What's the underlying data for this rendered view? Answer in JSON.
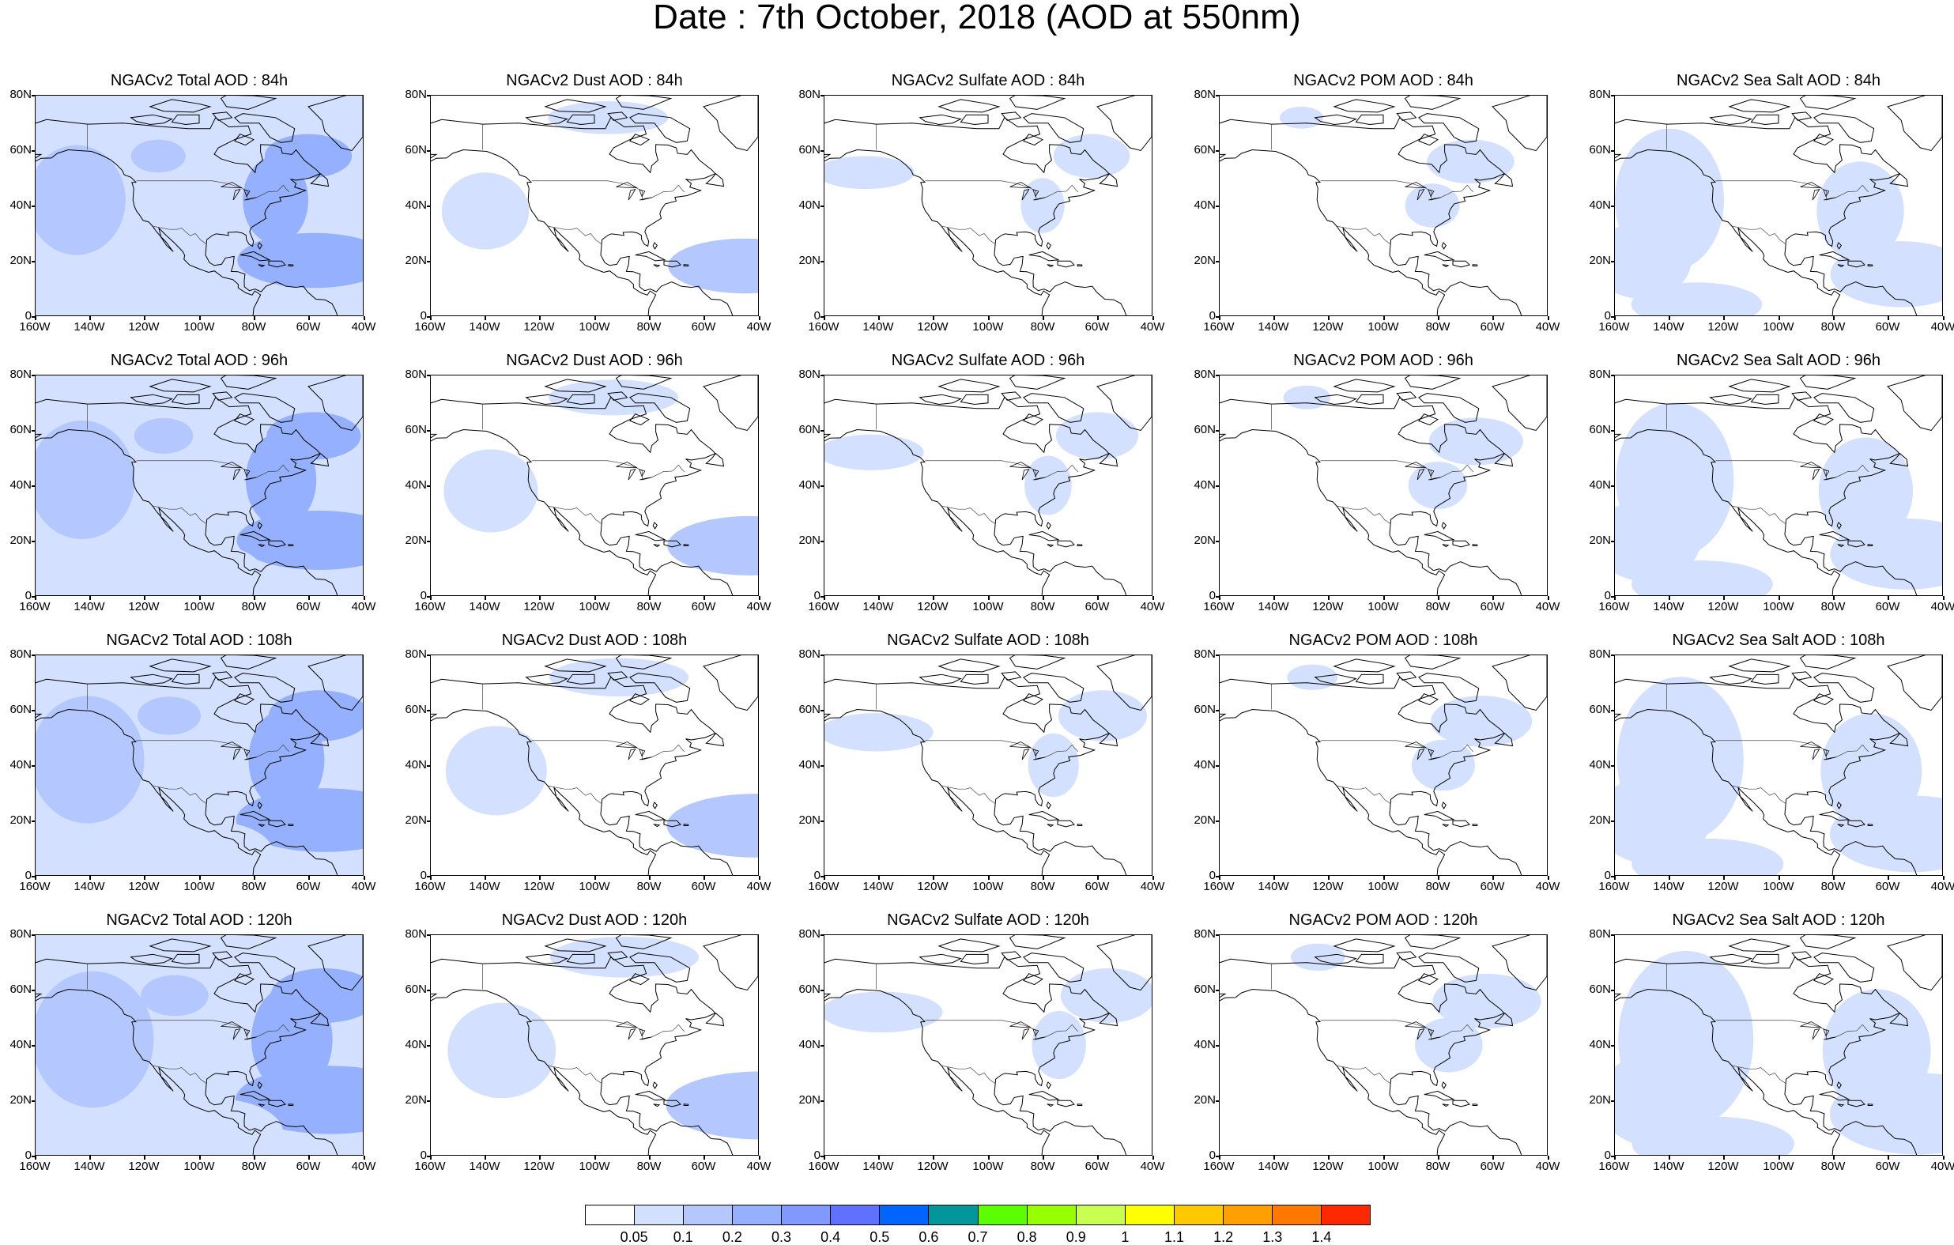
{
  "title": "Date : 7th October, 2018 (AOD at 550nm)",
  "panel_titles": [
    [
      "NGACv2 Total AOD : 84h",
      "NGACv2 Dust AOD : 84h",
      "NGACv2 Sulfate AOD : 84h",
      "NGACv2 POM AOD : 84h",
      "NGACv2 Sea Salt AOD : 84h"
    ],
    [
      "NGACv2 Total AOD : 96h",
      "NGACv2 Dust AOD : 96h",
      "NGACv2 Sulfate AOD : 96h",
      "NGACv2 POM AOD : 96h",
      "NGACv2 Sea Salt AOD : 96h"
    ],
    [
      "NGACv2 Total AOD : 108h",
      "NGACv2 Dust AOD : 108h",
      "NGACv2 Sulfate AOD : 108h",
      "NGACv2 POM AOD : 108h",
      "NGACv2 Sea Salt AOD : 108h"
    ],
    [
      "NGACv2 Total AOD : 120h",
      "NGACv2 Dust AOD : 120h",
      "NGACv2 Sulfate AOD : 120h",
      "NGACv2 POM AOD : 120h",
      "NGACv2 Sea Salt  AOD : 120h"
    ]
  ],
  "lat_labels": [
    "80N",
    "60N",
    "40N",
    "20N",
    "0"
  ],
  "lon_labels": [
    "160W",
    "140W",
    "120W",
    "100W",
    "80W",
    "60W",
    "40W"
  ],
  "lat_values": [
    80,
    60,
    40,
    20,
    0
  ],
  "lon_values": [
    -160,
    -140,
    -120,
    -100,
    -80,
    -60,
    -40
  ],
  "map_extent": {
    "lon": [
      -160,
      -40
    ],
    "lat": [
      0,
      80
    ]
  },
  "colorbar": {
    "labels": [
      "0.05",
      "0.1",
      "0.2",
      "0.3",
      "0.4",
      "0.5",
      "0.6",
      "0.7",
      "0.8",
      "0.9",
      "1",
      "1.1",
      "1.2",
      "1.3",
      "1.4"
    ],
    "colors": [
      "#ffffff",
      "#d4e0ff",
      "#b4c8ff",
      "#94b0ff",
      "#8098ff",
      "#6070ff",
      "#0064ff",
      "#00969a",
      "#5cff00",
      "#96ff00",
      "#c8ff50",
      "#ffff00",
      "#ffc800",
      "#ffa000",
      "#ff7800",
      "#ff2800"
    ]
  }
}
